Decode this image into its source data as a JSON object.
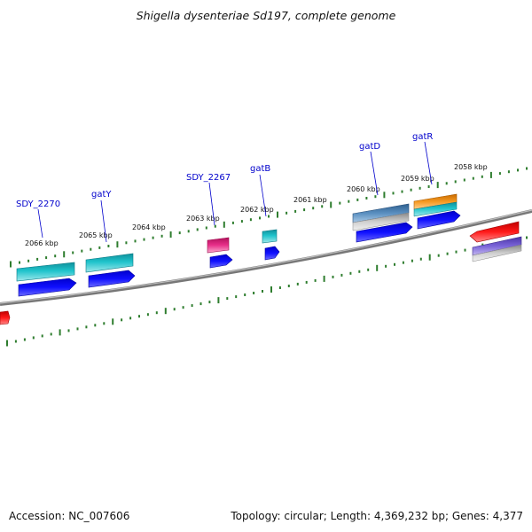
{
  "title": "Shigella dysenteriae Sd197, complete genome",
  "footer": {
    "accession": "Accession: NC_007606",
    "summary": "Topology: circular; Length: 4,369,232 bp; Genes: 4,377"
  },
  "colors": {
    "backbone": "#6e6e6e",
    "tick": "#2e7d2e",
    "cds": "#0000ee",
    "gene_teal": "#1fbfc8",
    "gene_pink": "#e0287a",
    "gene_orange": "#f0901c",
    "gene_steel": "#4a7fb0",
    "gene_red": "#ee0000",
    "gene_purple": "#6a55c8",
    "label": "#0000cc"
  },
  "kbp_labels": [
    "2066 kbp",
    "2065 kbp",
    "2064 kbp",
    "2063 kbp",
    "2062 kbp",
    "2061 kbp",
    "2060 kbp",
    "2059 kbp",
    "2058 kbp"
  ],
  "gene_labels": [
    "SDY_2270",
    "gatY",
    "SDY_2267",
    "gatB",
    "gatD",
    "gatR"
  ]
}
